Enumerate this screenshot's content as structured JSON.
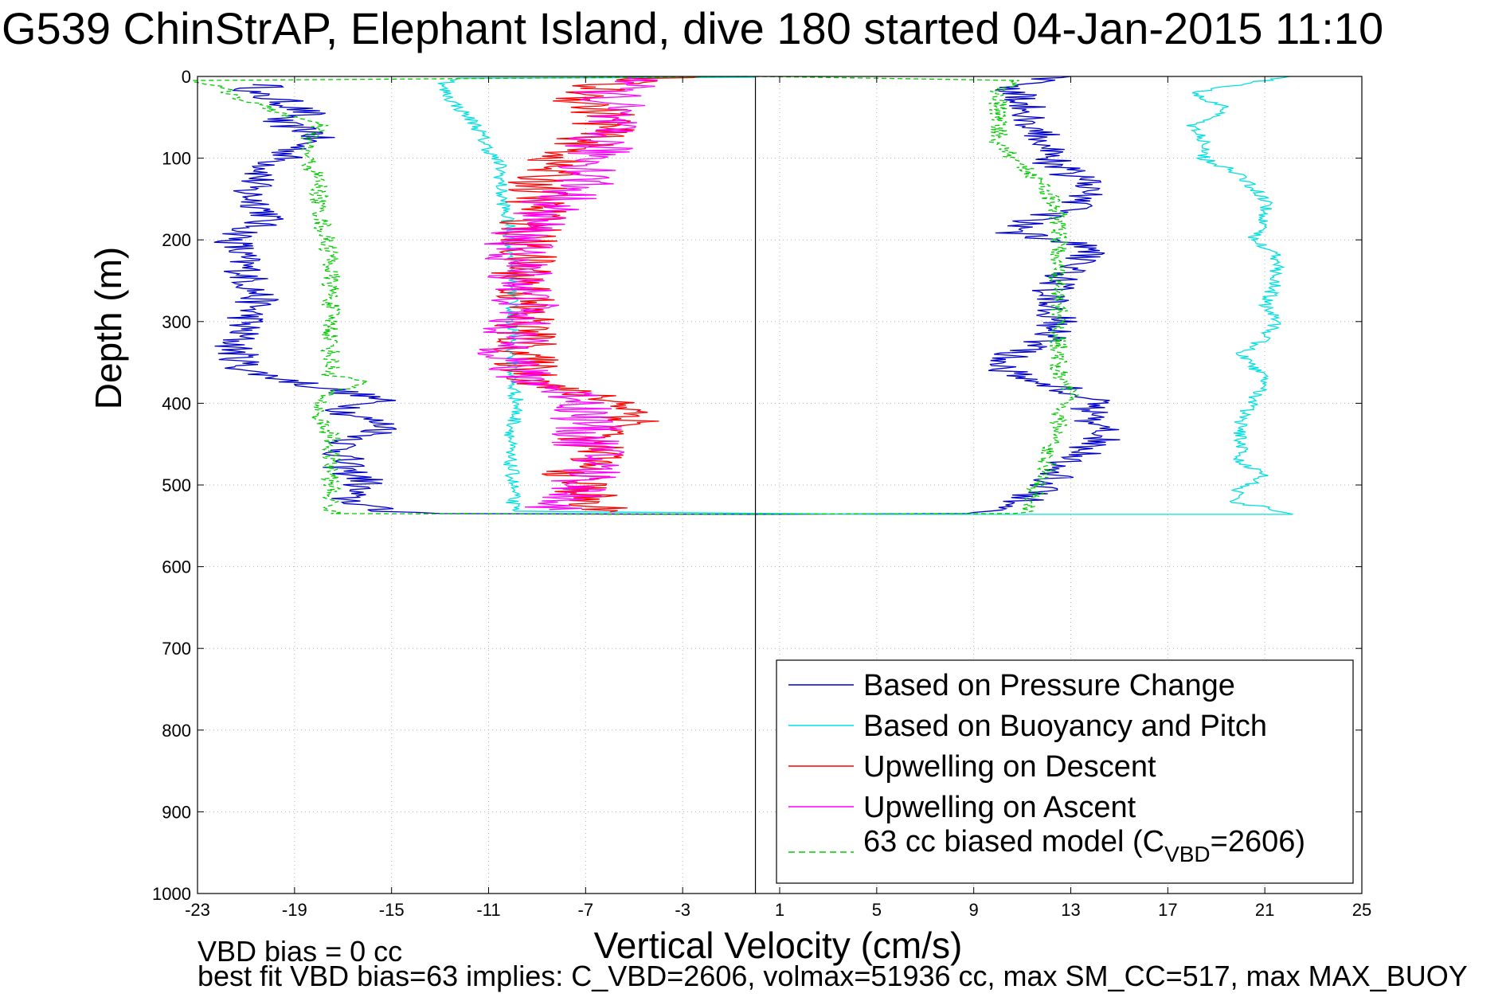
{
  "chart_data": {
    "type": "line",
    "title": "G539 ChinStrAP, Elephant Island, dive 180 started 04-Jan-2015 11:10",
    "xlabel": "Vertical Velocity (cm/s)",
    "ylabel": "Depth (m)",
    "xlim": [
      -23,
      25
    ],
    "ylim": [
      0,
      1000
    ],
    "y_reversed": true,
    "grid": true,
    "x_ticks": [
      "-23",
      "-19",
      "-15",
      "-11",
      "-7",
      "-3",
      "1",
      "5",
      "9",
      "13",
      "17",
      "21",
      "25"
    ],
    "y_ticks": [
      "0",
      "100",
      "200",
      "300",
      "400",
      "500",
      "600",
      "700",
      "800",
      "900",
      "1000"
    ],
    "zero_line_x": 0,
    "legend_position": "bottom-right",
    "series": [
      {
        "name": "Based on Pressure Change",
        "color": "#0000cc",
        "style": "solid",
        "noise": 0.9,
        "points": [
          [
            -20,
            10
          ],
          [
            -21,
            20
          ],
          [
            -19.5,
            30
          ],
          [
            -18.5,
            45
          ],
          [
            -20,
            55
          ],
          [
            -18,
            70
          ],
          [
            -19,
            90
          ],
          [
            -20,
            110
          ],
          [
            -21,
            140
          ],
          [
            -20,
            170
          ],
          [
            -21.5,
            200
          ],
          [
            -21,
            240
          ],
          [
            -20.5,
            270
          ],
          [
            -21,
            300
          ],
          [
            -21.5,
            330
          ],
          [
            -21,
            360
          ],
          [
            -18,
            380
          ],
          [
            -15.5,
            395
          ],
          [
            -17,
            410
          ],
          [
            -15,
            430
          ],
          [
            -17,
            450
          ],
          [
            -17,
            480
          ],
          [
            -16,
            495
          ],
          [
            -17,
            515
          ],
          [
            -15.5,
            532
          ],
          [
            -13,
            535
          ],
          [
            0,
            536
          ],
          [
            9.5,
            535
          ],
          [
            11,
            520
          ],
          [
            12,
            500
          ],
          [
            12.5,
            480
          ],
          [
            13.5,
            460
          ],
          [
            14.5,
            440
          ],
          [
            13.5,
            420
          ],
          [
            14,
            395
          ],
          [
            12.5,
            380
          ],
          [
            10.5,
            360
          ],
          [
            10.5,
            340
          ],
          [
            12,
            320
          ],
          [
            12.5,
            300
          ],
          [
            12,
            280
          ],
          [
            12.5,
            250
          ],
          [
            13,
            230
          ],
          [
            14,
            210
          ],
          [
            10.5,
            190
          ],
          [
            11,
            180
          ],
          [
            13,
            160
          ],
          [
            14,
            140
          ],
          [
            13,
            120
          ],
          [
            12,
            100
          ],
          [
            12,
            80
          ],
          [
            11.5,
            55
          ],
          [
            11,
            30
          ],
          [
            10.5,
            15
          ],
          [
            12,
            3
          ],
          [
            13,
            0
          ]
        ]
      },
      {
        "name": "Based on Buoyancy and Pitch",
        "color": "#00e0e0",
        "style": "solid",
        "noise": 0.3,
        "points": [
          [
            0,
            1
          ],
          [
            -12,
            2
          ],
          [
            -13,
            10
          ],
          [
            -12.5,
            30
          ],
          [
            -11.5,
            60
          ],
          [
            -11,
            90
          ],
          [
            -10.5,
            110
          ],
          [
            -10.5,
            140
          ],
          [
            -10.2,
            180
          ],
          [
            -10,
            220
          ],
          [
            -10,
            260
          ],
          [
            -10,
            300
          ],
          [
            -10,
            340
          ],
          [
            -10,
            380
          ],
          [
            -9.8,
            400
          ],
          [
            -10,
            430
          ],
          [
            -10.2,
            460
          ],
          [
            -10,
            490
          ],
          [
            -10,
            520
          ],
          [
            -10,
            532
          ],
          [
            5,
            536
          ],
          [
            22,
            536
          ],
          [
            21.5,
            530
          ],
          [
            19.5,
            520
          ],
          [
            20,
            505
          ],
          [
            21,
            490
          ],
          [
            20,
            470
          ],
          [
            20,
            450
          ],
          [
            20,
            420
          ],
          [
            20.5,
            400
          ],
          [
            21,
            370
          ],
          [
            20,
            340
          ],
          [
            21,
            320
          ],
          [
            21.5,
            300
          ],
          [
            21,
            280
          ],
          [
            21.5,
            250
          ],
          [
            21.5,
            220
          ],
          [
            20.5,
            200
          ],
          [
            21,
            180
          ],
          [
            21,
            150
          ],
          [
            20,
            120
          ],
          [
            18.5,
            100
          ],
          [
            18.5,
            80
          ],
          [
            18,
            60
          ],
          [
            19.5,
            40
          ],
          [
            18,
            20
          ],
          [
            22,
            0
          ]
        ]
      },
      {
        "name": "Upwelling on Descent",
        "color": "#ff0000",
        "style": "solid",
        "noise": 1.4,
        "points": [
          [
            -3.5,
            0
          ],
          [
            -6.5,
            10
          ],
          [
            -7,
            30
          ],
          [
            -6,
            50
          ],
          [
            -6.5,
            70
          ],
          [
            -7.5,
            90
          ],
          [
            -8.5,
            110
          ],
          [
            -9,
            140
          ],
          [
            -9,
            170
          ],
          [
            -9.5,
            200
          ],
          [
            -9.5,
            230
          ],
          [
            -9.5,
            260
          ],
          [
            -9.5,
            290
          ],
          [
            -9.5,
            320
          ],
          [
            -9.5,
            350
          ],
          [
            -9,
            370
          ],
          [
            -8,
            385
          ],
          [
            -6,
            395
          ],
          [
            -5,
            405
          ],
          [
            -5,
            425
          ],
          [
            -7,
            445
          ],
          [
            -6.5,
            465
          ],
          [
            -7.5,
            485
          ],
          [
            -7,
            505
          ],
          [
            -7,
            525
          ],
          [
            -6,
            533
          ]
        ]
      },
      {
        "name": "Upwelling on Ascent",
        "color": "#ff00ff",
        "style": "solid",
        "noise": 1.5,
        "points": [
          [
            -4,
            0
          ],
          [
            -6,
            15
          ],
          [
            -6,
            40
          ],
          [
            -6.5,
            70
          ],
          [
            -6.5,
            100
          ],
          [
            -7,
            130
          ],
          [
            -8.5,
            160
          ],
          [
            -9.5,
            190
          ],
          [
            -10,
            220
          ],
          [
            -9.5,
            250
          ],
          [
            -9.5,
            280
          ],
          [
            -10,
            310
          ],
          [
            -10,
            340
          ],
          [
            -10,
            360
          ],
          [
            -8.5,
            380
          ],
          [
            -7,
            395
          ],
          [
            -7,
            420
          ],
          [
            -7,
            445
          ],
          [
            -6.5,
            470
          ],
          [
            -7,
            495
          ],
          [
            -7.5,
            515
          ],
          [
            -8.5,
            530
          ]
        ]
      },
      {
        "name": "63 cc biased model (C_VBD=2606)",
        "color": "#00cc00",
        "style": "dashed",
        "noise": 0.4,
        "points": [
          [
            0,
            0
          ],
          [
            -23,
            5
          ],
          [
            -22,
            15
          ],
          [
            -21,
            30
          ],
          [
            -19.5,
            45
          ],
          [
            -18,
            60
          ],
          [
            -18.5,
            80
          ],
          [
            -18.5,
            100
          ],
          [
            -18,
            130
          ],
          [
            -18,
            160
          ],
          [
            -17.8,
            190
          ],
          [
            -17.5,
            220
          ],
          [
            -17.5,
            260
          ],
          [
            -17.5,
            300
          ],
          [
            -17.5,
            340
          ],
          [
            -17.5,
            365
          ],
          [
            -16,
            375
          ],
          [
            -17.5,
            385
          ],
          [
            -18,
            400
          ],
          [
            -18,
            420
          ],
          [
            -17.5,
            440
          ],
          [
            -17.5,
            470
          ],
          [
            -17.5,
            500
          ],
          [
            -17.5,
            520
          ],
          [
            -17.5,
            535
          ],
          [
            -5,
            536
          ],
          [
            11,
            535
          ],
          [
            11.5,
            520
          ],
          [
            11.5,
            500
          ],
          [
            12,
            485
          ],
          [
            12,
            465
          ],
          [
            12.5,
            440
          ],
          [
            12.5,
            410
          ],
          [
            13,
            390
          ],
          [
            12.5,
            370
          ],
          [
            12.5,
            340
          ],
          [
            12.5,
            300
          ],
          [
            12.5,
            260
          ],
          [
            12.5,
            230
          ],
          [
            12.5,
            200
          ],
          [
            12.5,
            170
          ],
          [
            12,
            140
          ],
          [
            11,
            110
          ],
          [
            10,
            80
          ],
          [
            10,
            50
          ],
          [
            10,
            30
          ],
          [
            10,
            15
          ],
          [
            11,
            5
          ],
          [
            0,
            0
          ]
        ]
      }
    ],
    "legend_label_main": [
      "Based on Pressure Change",
      "Based on Buoyancy and Pitch",
      "Upwelling on Descent",
      "Upwelling on Ascent"
    ],
    "legend_model_prefix": "63 cc biased model (C",
    "legend_model_sub": "VBD",
    "legend_model_suffix": "=2606)",
    "annotations": {
      "vbd_bias": "VBD bias = 0 cc",
      "best_fit": "best fit VBD bias=63 implies: C_VBD=2606, volmax=51936 cc, max SM_CC=517, max MAX_BUOY"
    }
  }
}
